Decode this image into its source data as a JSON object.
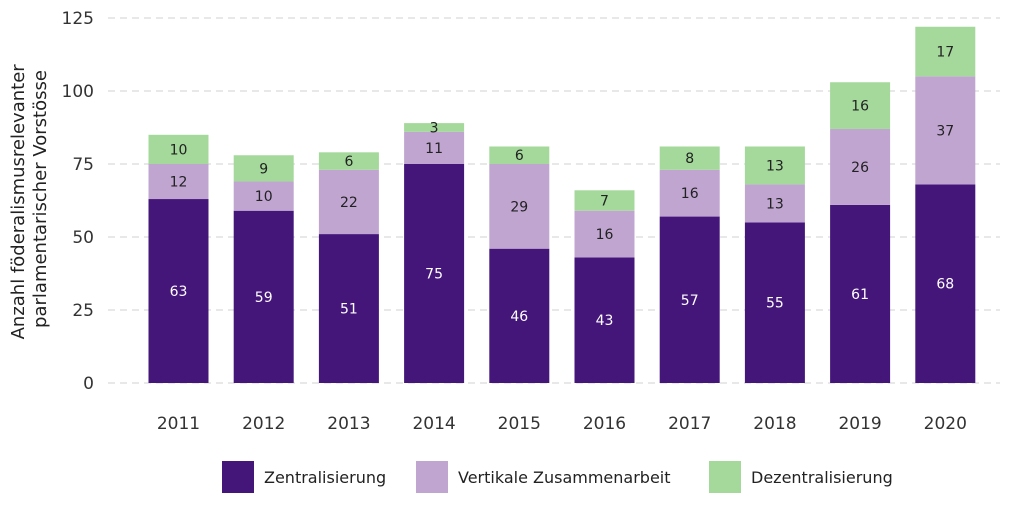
{
  "chart_data": {
    "type": "bar",
    "stacked": true,
    "categories": [
      "2011",
      "2012",
      "2013",
      "2014",
      "2015",
      "2016",
      "2017",
      "2018",
      "2019",
      "2020"
    ],
    "series": [
      {
        "name": "Zentralisierung",
        "color": "#45167a",
        "label_color": "#ffffff",
        "values": [
          63,
          59,
          51,
          75,
          46,
          43,
          57,
          55,
          61,
          68
        ]
      },
      {
        "name": "Vertikale Zusammenarbeit",
        "color": "#c0a5d1",
        "label_color": "#222222",
        "values": [
          12,
          10,
          22,
          11,
          29,
          16,
          16,
          13,
          26,
          37
        ]
      },
      {
        "name": "Dezentralisierung",
        "color": "#a4d99b",
        "label_color": "#222222",
        "values": [
          10,
          9,
          6,
          3,
          6,
          7,
          8,
          13,
          16,
          17
        ]
      }
    ],
    "ylabel_lines": [
      "Anzahl föderalismusrelevanter",
      "parlamentarischer Vorstösse"
    ],
    "ylim": [
      0,
      125
    ],
    "yticks": [
      0,
      25,
      50,
      75,
      100,
      125
    ],
    "grid": "horizontal dashed",
    "legend_position": "bottom"
  }
}
